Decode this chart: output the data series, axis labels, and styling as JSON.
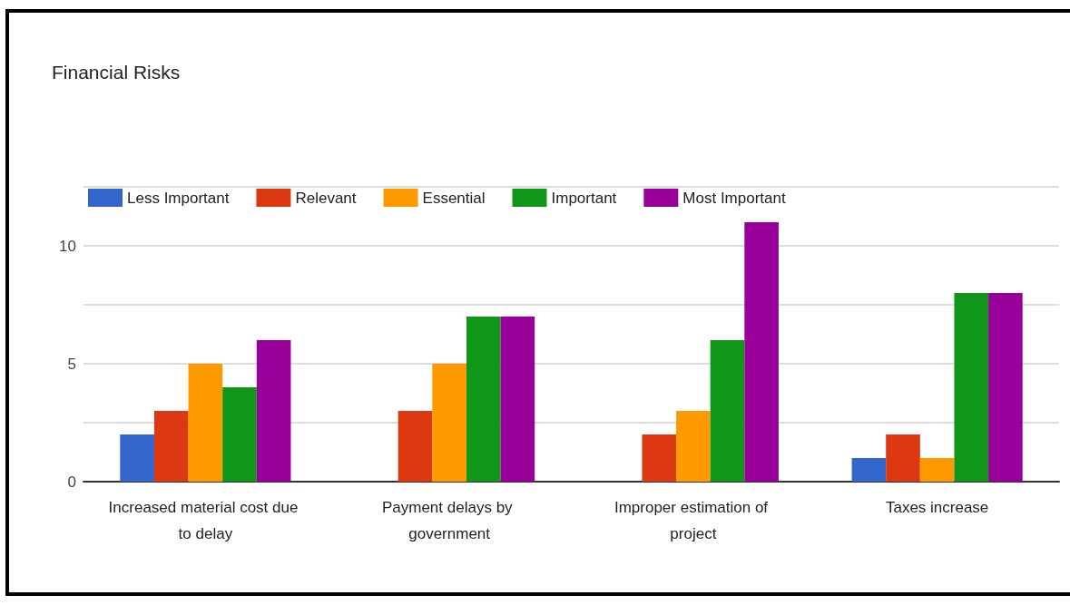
{
  "chart_data": {
    "type": "bar",
    "title": "Financial Risks",
    "categories": [
      "Increased material cost due to delay",
      "Payment delays by government",
      "Improper estimation of project",
      "Taxes increase"
    ],
    "series": [
      {
        "name": "Less Important",
        "color": "#3366cc",
        "values": [
          2,
          0,
          0,
          1
        ]
      },
      {
        "name": "Relevant",
        "color": "#dc3912",
        "values": [
          3,
          3,
          2,
          2
        ]
      },
      {
        "name": "Essential",
        "color": "#ff9900",
        "values": [
          5,
          5,
          3,
          1
        ]
      },
      {
        "name": "Important",
        "color": "#109618",
        "values": [
          4,
          7,
          6,
          8
        ]
      },
      {
        "name": "Most Important",
        "color": "#990099",
        "values": [
          6,
          7,
          11,
          8
        ]
      }
    ],
    "ylim": [
      0,
      12.5
    ],
    "yticks": [
      0,
      {
        "value": 2.5,
        "label": null
      },
      5,
      {
        "value": 7.5,
        "label": null
      },
      10,
      {
        "value": 12.5,
        "label": null
      }
    ],
    "grid": true,
    "legend": "top left"
  }
}
